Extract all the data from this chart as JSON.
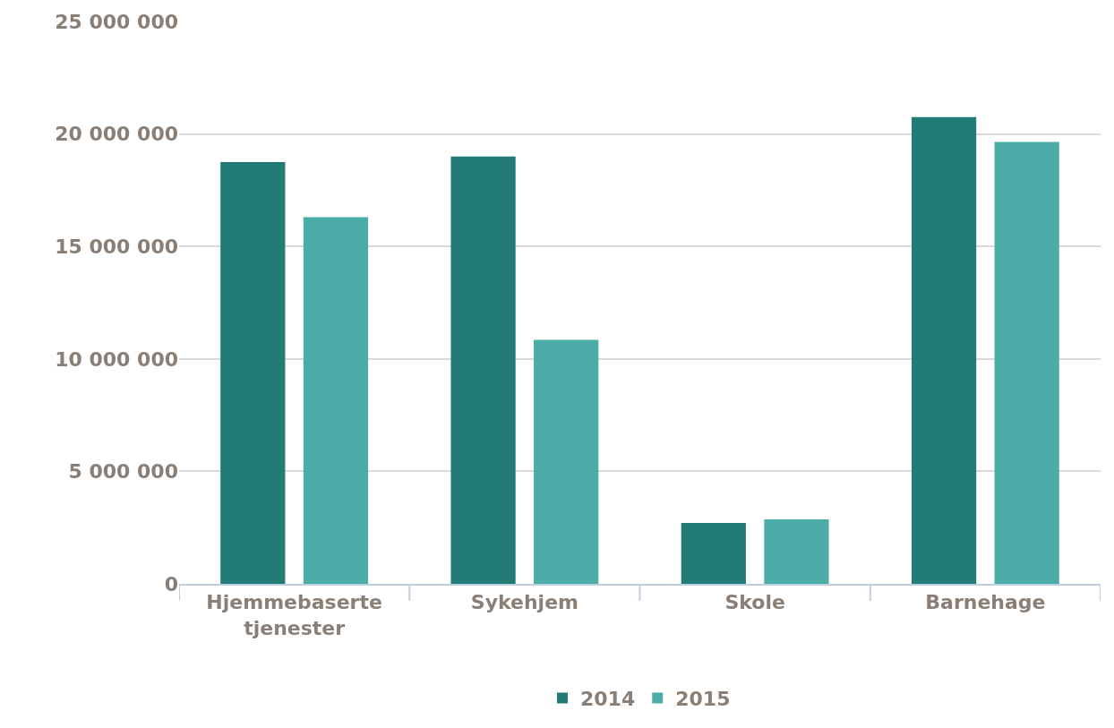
{
  "chart_data": {
    "type": "bar",
    "categories": [
      "Hjemmebaserte\ntjenester",
      "Sykehjem",
      "Skole",
      "Barnehage"
    ],
    "series": [
      {
        "name": "2014",
        "color": "#237b75",
        "values": [
          18750000,
          19000000,
          2710000,
          20750000
        ]
      },
      {
        "name": "2015",
        "color": "#4cada8",
        "values": [
          16300000,
          10850000,
          2870000,
          19650000
        ]
      }
    ],
    "ylim": [
      0,
      25000000
    ],
    "yticks": [
      {
        "value": 0,
        "label": "0"
      },
      {
        "value": 5000000,
        "label": "5 000 000"
      },
      {
        "value": 10000000,
        "label": "10 000 000"
      },
      {
        "value": 15000000,
        "label": "15 000 000"
      },
      {
        "value": 20000000,
        "label": "20 000 000"
      },
      {
        "value": 25000000,
        "label": "25 000 000"
      }
    ],
    "grid": "y",
    "legend": "bottom"
  }
}
